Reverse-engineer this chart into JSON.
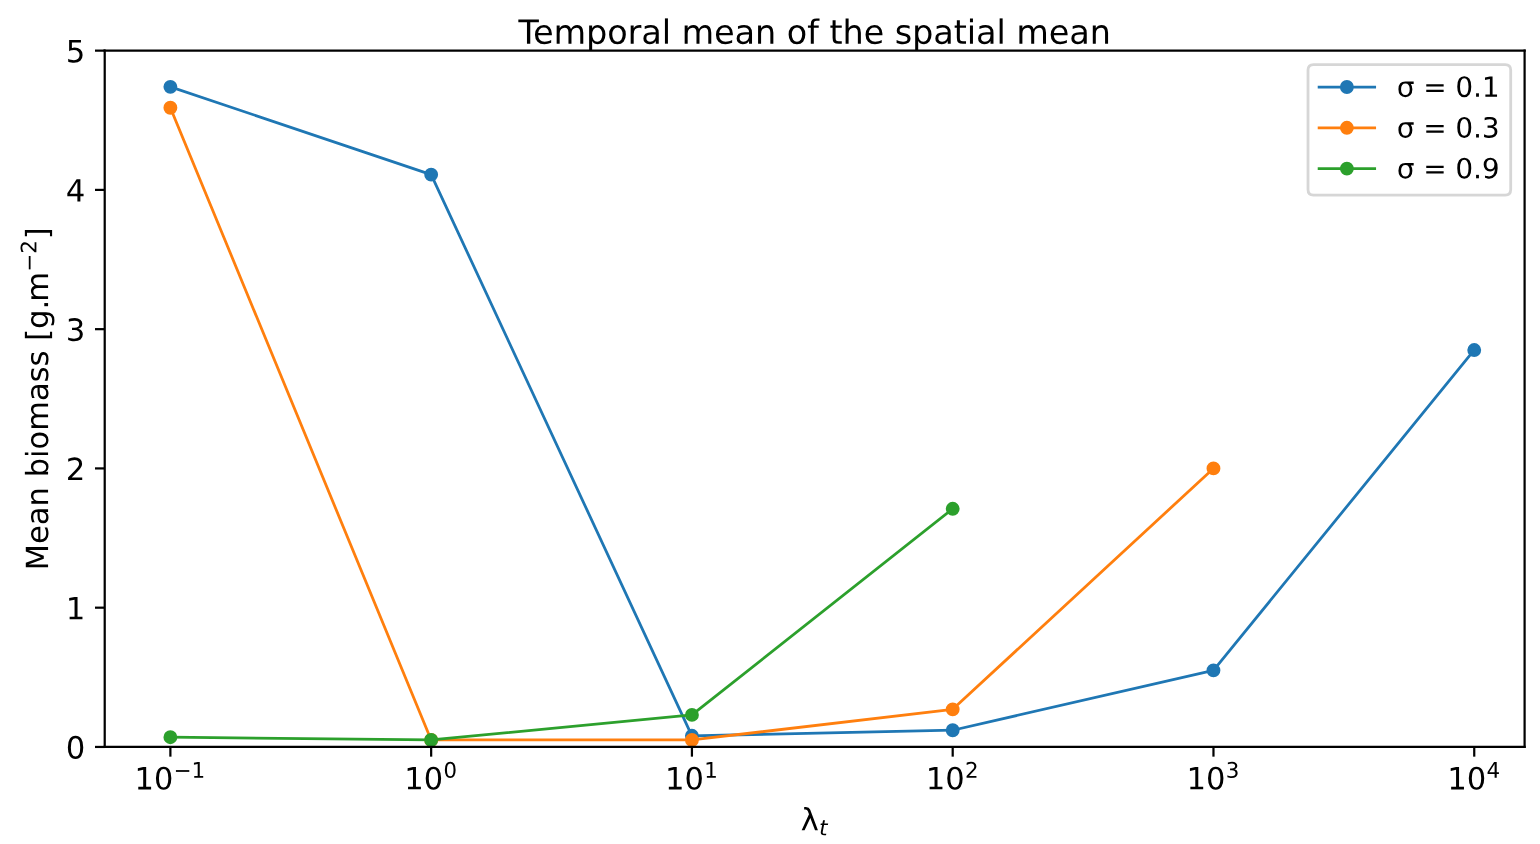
{
  "chart_data": {
    "type": "line",
    "title": "Temporal mean of the spatial mean",
    "xlabel": "λ$_{t}$",
    "ylabel": "Mean biomass [g.m$^{−2}$]",
    "x": [
      0.1,
      1,
      10,
      100,
      1000,
      10000
    ],
    "series": [
      {
        "name": "σ = 0.1",
        "color": "#1f77b4",
        "values": [
          4.74,
          4.11,
          0.08,
          0.12,
          0.55,
          2.85
        ]
      },
      {
        "name": "σ = 0.3",
        "color": "#ff7f0e",
        "values": [
          4.59,
          0.05,
          0.05,
          0.27,
          2.0,
          null
        ]
      },
      {
        "name": "σ = 0.9",
        "color": "#2ca02c",
        "values": [
          0.07,
          0.05,
          0.23,
          1.71,
          null,
          null
        ]
      }
    ],
    "log": "x",
    "xlim": [
      0.056,
      15600
    ],
    "ylim": [
      0,
      5
    ],
    "xticks": [
      {
        "value": 0.1,
        "label": "10$^{−1}$"
      },
      {
        "value": 1,
        "label": "10$^{0}$"
      },
      {
        "value": 10,
        "label": "10$^{1}$"
      },
      {
        "value": 100,
        "label": "10$^{2}$"
      },
      {
        "value": 1000,
        "label": "10$^{3}$"
      },
      {
        "value": 10000,
        "label": "10$^{4}$"
      }
    ],
    "yticks": [
      0,
      1,
      2,
      3,
      4,
      5
    ],
    "legend": "top right",
    "marker": "circle",
    "line_style": "solid",
    "grid": false
  }
}
